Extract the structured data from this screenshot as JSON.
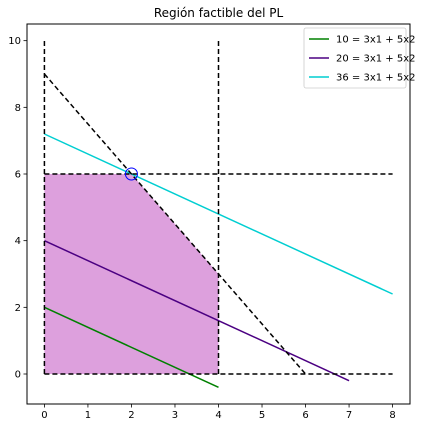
{
  "chart_data": {
    "type": "line",
    "title": "Región factible del PL",
    "xlabel": "",
    "ylabel": "",
    "xlim": [
      -0.4,
      8.4
    ],
    "ylim": [
      -0.9,
      10.5
    ],
    "xticks": [
      0,
      1,
      2,
      3,
      4,
      5,
      6,
      7,
      8
    ],
    "yticks": [
      0,
      2,
      4,
      6,
      8,
      10
    ],
    "grid": false,
    "legend_position": "top-right",
    "feasible_region": {
      "color": "#dda0dd",
      "vertices": [
        [
          0,
          0
        ],
        [
          4,
          0
        ],
        [
          4,
          3
        ],
        [
          2,
          6
        ],
        [
          0,
          6
        ]
      ]
    },
    "constraints": [
      {
        "type": "vertical",
        "x": 0,
        "y_range": [
          0,
          10
        ]
      },
      {
        "type": "vertical",
        "x": 4,
        "y_range": [
          0,
          10
        ]
      },
      {
        "type": "horizontal",
        "y": 6,
        "x_range": [
          0,
          8
        ]
      },
      {
        "type": "horizontal",
        "y": 0,
        "x_range": [
          0,
          8
        ]
      },
      {
        "type": "line",
        "x": [
          0,
          6
        ],
        "y": [
          9,
          0
        ]
      }
    ],
    "series": [
      {
        "name": "10 = 3x1 + 5x2",
        "color": "#008000",
        "x": [
          0,
          4
        ],
        "y": [
          2,
          -0.4
        ]
      },
      {
        "name": "20 = 3x1 + 5x2",
        "color": "#4b0082",
        "x": [
          0,
          7
        ],
        "y": [
          4,
          -0.2
        ]
      },
      {
        "name": "36 = 3x1 + 5x2",
        "color": "#00ced1",
        "x": [
          0,
          8
        ],
        "y": [
          7.2,
          2.4
        ]
      }
    ],
    "optimum": {
      "x": 2,
      "y": 6,
      "color": "#0000ff"
    }
  }
}
